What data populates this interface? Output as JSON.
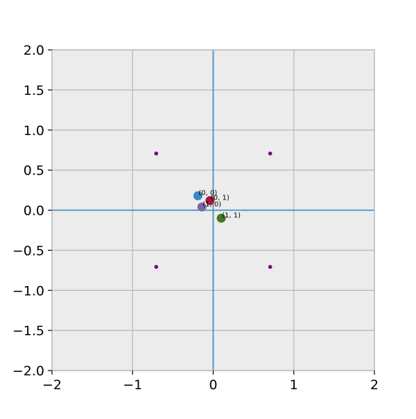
{
  "chart_data": {
    "type": "scatter",
    "title": "",
    "xlabel": "",
    "ylabel": "",
    "xlim": [
      -2,
      2
    ],
    "ylim": [
      -2,
      2
    ],
    "grid": true,
    "background_color": "#ececec",
    "grid_color": "#bdbdbd",
    "axis_line_color": "#4a90c4",
    "x_ticks": [
      {
        "value": -2,
        "label": "−2"
      },
      {
        "value": -1,
        "label": "−1"
      },
      {
        "value": 0,
        "label": "0"
      },
      {
        "value": 1,
        "label": "1"
      },
      {
        "value": 2,
        "label": "2"
      }
    ],
    "y_ticks": [
      {
        "value": 2.0,
        "label": "2.0"
      },
      {
        "value": 1.5,
        "label": "1.5"
      },
      {
        "value": 1.0,
        "label": "1.0"
      },
      {
        "value": 0.5,
        "label": "0.5"
      },
      {
        "value": 0.0,
        "label": "0.0"
      },
      {
        "value": -0.5,
        "label": "−0.5"
      },
      {
        "value": -1.0,
        "label": "−1.0"
      },
      {
        "value": -1.5,
        "label": "−1.5"
      },
      {
        "value": -2.0,
        "label": "−2.0"
      }
    ],
    "reference_points": {
      "color": "#800080",
      "x": [
        -0.707,
        0.707,
        -0.707,
        0.707
      ],
      "y": [
        0.707,
        0.707,
        -0.707,
        -0.707
      ]
    },
    "points": [
      {
        "label": "(0, 0)",
        "x": -0.19,
        "y": 0.18,
        "color": "#3a87c1"
      },
      {
        "label": "(0, 1)",
        "x": -0.04,
        "y": 0.12,
        "color": "#a6173d"
      },
      {
        "label": "(1, 0)",
        "x": -0.14,
        "y": 0.04,
        "color": "#7b68a6"
      },
      {
        "label": "(1, 1)",
        "x": 0.1,
        "y": -0.1,
        "color": "#467821"
      }
    ]
  }
}
